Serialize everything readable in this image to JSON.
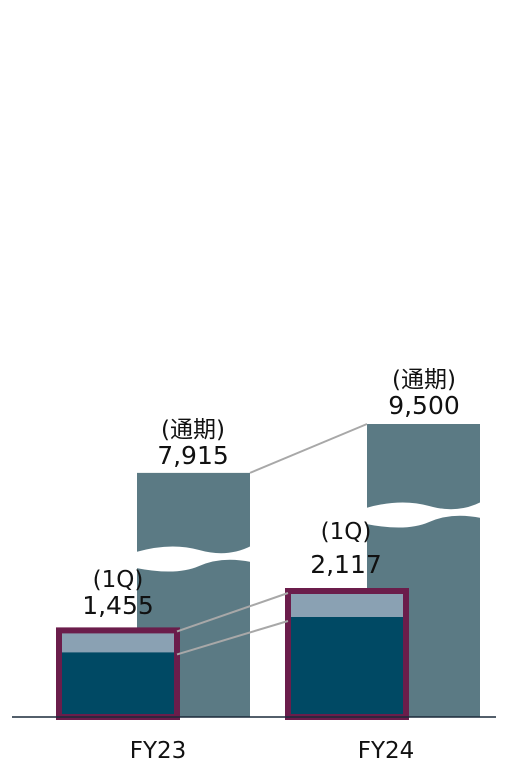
{
  "chart_data": {
    "type": "bar",
    "categories": [
      "FY23",
      "FY24"
    ],
    "series": [
      {
        "name": "通期",
        "values": [
          7915,
          9500
        ]
      },
      {
        "name": "1Q",
        "values": [
          1455,
          2117
        ]
      }
    ],
    "annotations": {
      "full_year_tag": "(通期)",
      "quarter_tag": "(1Q)"
    },
    "value_labels": {
      "full_year": [
        "7,915",
        "9,500"
      ],
      "quarter": [
        "1,455",
        "2,117"
      ]
    },
    "axis_break": true,
    "grid": false,
    "legend": "none"
  },
  "colors": {
    "full_year_bar": "#5b7a84",
    "quarter_bar_dark": "#004964",
    "quarter_bar_light": "#8aa1b3",
    "quarter_outline": "#6b1d4b",
    "connector": "#a8a8a8",
    "axis": "#1a2a3a"
  }
}
